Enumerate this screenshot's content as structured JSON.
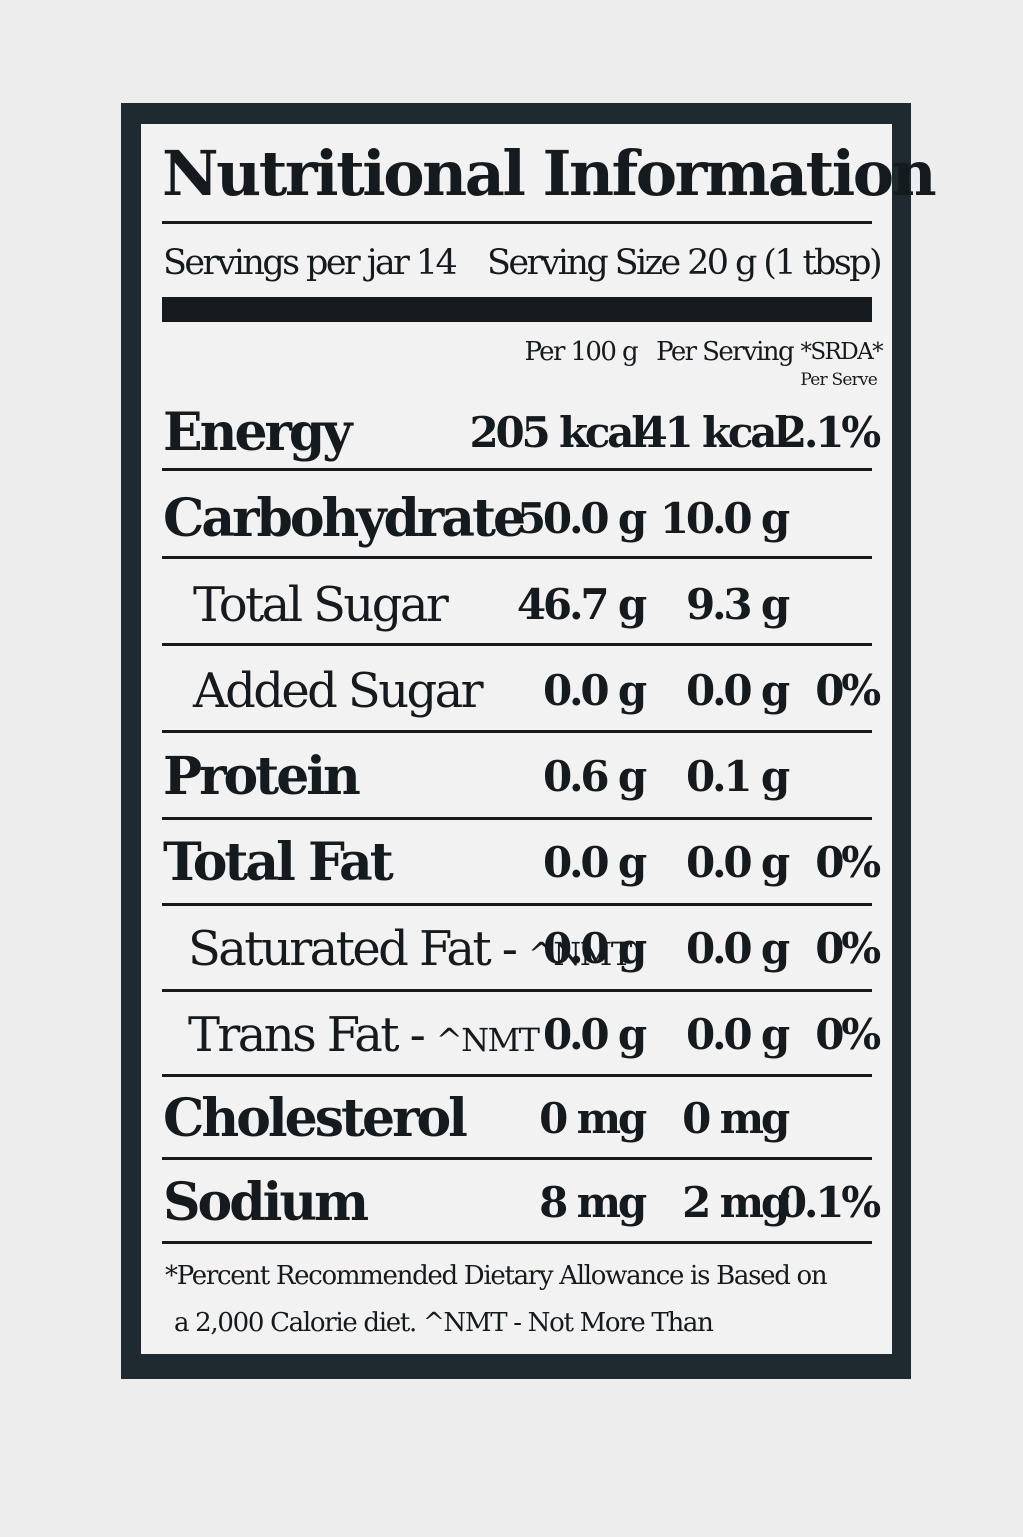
{
  "title": "Nutritional Information",
  "servings": {
    "per_jar": "Servings per jar 14",
    "serving_size": "Serving Size  20 g (1 tbsp)"
  },
  "columns": {
    "per100": "Per 100 g",
    "per_serving": "Per Serving",
    "srda": "*SRDA*",
    "srda_sub": "Per Serve"
  },
  "rows": [
    {
      "name": "Energy",
      "per100": "205 kcal",
      "per_serving": "41 kcal",
      "srda": "2.1%"
    },
    {
      "name": "Carbohydrate",
      "per100": "50.0 g",
      "per_serving": "10.0 g",
      "srda": ""
    },
    {
      "name": "Total Sugar",
      "per100": "46.7 g",
      "per_serving": "9.3 g",
      "srda": ""
    },
    {
      "name": "Added Sugar",
      "per100": "0.0 g",
      "per_serving": "0.0 g",
      "srda": "0%"
    },
    {
      "name": "Protein",
      "per100": "0.6 g",
      "per_serving": "0.1 g",
      "srda": ""
    },
    {
      "name": "Total Fat",
      "per100": "0.0 g",
      "per_serving": "0.0 g",
      "srda": "0%"
    },
    {
      "name": "Saturated Fat - ",
      "suffix": "^NMT",
      "per100": "0.0 g",
      "per_serving": "0.0 g",
      "srda": "0%"
    },
    {
      "name": "Trans Fat - ",
      "suffix": "^NMT",
      "per100": "0.0 g",
      "per_serving": "0.0 g",
      "srda": "0%"
    },
    {
      "name": "Cholesterol",
      "per100": "0 mg",
      "per_serving": "0 mg",
      "srda": ""
    },
    {
      "name": "Sodium",
      "per100": "8 mg",
      "per_serving": "2 mg",
      "srda": "0.1%"
    }
  ],
  "footnote": {
    "line1": "*Percent Recommended Dietary Allowance is Based on",
    "line2": "a 2,000 Calorie diet. ^NMT - Not More Than"
  }
}
